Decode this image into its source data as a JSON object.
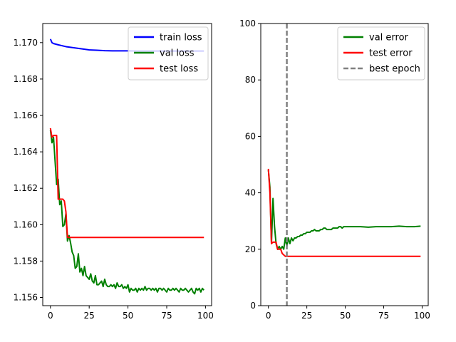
{
  "chart_data": [
    {
      "type": "line",
      "xlim": [
        -4.95,
        103.95
      ],
      "ylim": [
        1.15555,
        1.17105
      ],
      "xticks": [
        0,
        25,
        50,
        75,
        100
      ],
      "yticks": [
        1.156,
        1.158,
        1.16,
        1.162,
        1.164,
        1.166,
        1.168,
        1.17
      ],
      "ytick_labels": [
        "1.156",
        "1.158",
        "1.160",
        "1.162",
        "1.164",
        "1.166",
        "1.168",
        "1.170"
      ],
      "grid": false,
      "legend_position": "top-right",
      "series": [
        {
          "name": "train loss",
          "color": "#0000ff",
          "x": [
            0,
            1,
            2,
            5,
            10,
            15,
            20,
            25,
            30,
            35,
            40,
            45,
            50,
            55,
            60,
            65,
            70,
            75,
            80,
            85,
            90,
            95,
            99
          ],
          "y": [
            1.1702,
            1.17,
            1.16995,
            1.16988,
            1.16978,
            1.16972,
            1.16966,
            1.1696,
            1.16958,
            1.16956,
            1.16955,
            1.16955,
            1.16955,
            1.16954,
            1.16954,
            1.16954,
            1.16954,
            1.16954,
            1.16954,
            1.16954,
            1.16954,
            1.16954,
            1.16954
          ]
        },
        {
          "name": "val loss",
          "color": "#008000",
          "x": [
            0,
            1,
            2,
            3,
            4,
            5,
            6,
            7,
            8,
            9,
            10,
            11,
            12,
            13,
            14,
            15,
            16,
            17,
            18,
            19,
            20,
            21,
            22,
            23,
            24,
            25,
            26,
            27,
            28,
            29,
            30,
            31,
            32,
            33,
            34,
            35,
            36,
            37,
            38,
            39,
            40,
            41,
            42,
            43,
            44,
            45,
            46,
            47,
            48,
            49,
            50,
            51,
            52,
            53,
            54,
            55,
            56,
            57,
            58,
            59,
            60,
            61,
            62,
            63,
            64,
            65,
            66,
            67,
            68,
            69,
            70,
            71,
            72,
            73,
            74,
            75,
            76,
            77,
            78,
            79,
            80,
            81,
            82,
            83,
            84,
            85,
            86,
            87,
            88,
            89,
            90,
            91,
            92,
            93,
            94,
            95,
            96,
            97,
            98,
            99
          ],
          "y": [
            1.1652,
            1.1645,
            1.1648,
            1.1635,
            1.1622,
            1.1625,
            1.1611,
            1.1613,
            1.1599,
            1.16,
            1.1606,
            1.1591,
            1.1594,
            1.159,
            1.1585,
            1.1583,
            1.1576,
            1.1577,
            1.1584,
            1.1574,
            1.1576,
            1.1572,
            1.1577,
            1.1572,
            1.1571,
            1.157,
            1.1573,
            1.1569,
            1.1568,
            1.1572,
            1.1567,
            1.1567,
            1.1568,
            1.1569,
            1.1566,
            1.157,
            1.1567,
            1.1566,
            1.1566,
            1.1567,
            1.1566,
            1.1567,
            1.1565,
            1.1568,
            1.1566,
            1.1566,
            1.1567,
            1.1565,
            1.1566,
            1.1565,
            1.1567,
            1.1563,
            1.1565,
            1.1564,
            1.1564,
            1.1565,
            1.1563,
            1.1565,
            1.1564,
            1.1565,
            1.1564,
            1.1566,
            1.1564,
            1.1565,
            1.1565,
            1.1564,
            1.1565,
            1.1564,
            1.1565,
            1.1563,
            1.1565,
            1.1565,
            1.1564,
            1.1565,
            1.1564,
            1.1563,
            1.1565,
            1.1564,
            1.1564,
            1.1565,
            1.1564,
            1.1565,
            1.1564,
            1.1563,
            1.1565,
            1.1564,
            1.1564,
            1.1565,
            1.1564,
            1.1563,
            1.1564,
            1.1565,
            1.1563,
            1.1562,
            1.1565,
            1.1564,
            1.1565,
            1.1563,
            1.1565,
            1.1564
          ]
        },
        {
          "name": "test loss",
          "color": "#ff0000",
          "x": [
            0,
            1,
            2,
            3,
            4,
            5,
            6,
            7,
            8,
            9,
            10,
            11,
            12,
            13,
            99
          ],
          "y": [
            1.1653,
            1.1648,
            1.1649,
            1.1649,
            1.1649,
            1.1614,
            1.1614,
            1.1614,
            1.1614,
            1.1613,
            1.1607,
            1.1593,
            1.1593,
            1.1593,
            1.1593
          ]
        }
      ]
    },
    {
      "type": "line",
      "xlim": [
        -4.95,
        103.95
      ],
      "ylim": [
        0,
        100
      ],
      "xticks": [
        0,
        25,
        50,
        75,
        100
      ],
      "yticks": [
        0,
        20,
        40,
        60,
        80,
        100
      ],
      "ytick_labels": [
        "0",
        "20",
        "40",
        "60",
        "80",
        "100"
      ],
      "grid": false,
      "legend_position": "top-right",
      "series": [
        {
          "name": "val error",
          "color": "#008000",
          "x": [
            0,
            1,
            2,
            3,
            4,
            5,
            6,
            7,
            8,
            9,
            10,
            11,
            12,
            13,
            14,
            15,
            16,
            17,
            18,
            19,
            20,
            21,
            22,
            23,
            24,
            25,
            26,
            27,
            28,
            29,
            30,
            31,
            32,
            33,
            34,
            35,
            36,
            37,
            38,
            39,
            40,
            41,
            42,
            43,
            44,
            45,
            46,
            47,
            48,
            49,
            50,
            55,
            60,
            65,
            70,
            75,
            80,
            85,
            90,
            95,
            99
          ],
          "y": [
            48,
            42,
            22,
            38,
            28,
            22,
            20,
            21,
            20,
            21,
            20,
            24,
            21,
            24,
            22,
            24,
            23,
            24,
            24,
            24.5,
            24.5,
            25,
            25,
            25.5,
            25.5,
            26,
            26,
            26,
            26.5,
            26.5,
            27,
            26.5,
            26.5,
            26.5,
            27,
            27,
            27.5,
            27.5,
            27,
            27,
            27,
            27,
            27.5,
            27.5,
            27.5,
            27.5,
            28,
            28,
            27.5,
            28,
            28,
            28,
            28,
            27.8,
            28,
            28,
            28,
            28.2,
            28,
            28,
            28.2
          ]
        },
        {
          "name": "test error",
          "color": "#ff0000",
          "x": [
            0,
            1,
            2,
            3,
            4,
            5,
            6,
            7,
            8,
            9,
            10,
            11,
            12,
            13,
            99
          ],
          "y": [
            48.5,
            40,
            22,
            22.5,
            22.5,
            22.5,
            20,
            20,
            20,
            18.5,
            18,
            17.5,
            17.5,
            17.5,
            17.5
          ]
        }
      ],
      "reference_lines": [
        {
          "name": "best epoch",
          "orientation": "vertical",
          "x": 12,
          "color": "#808080",
          "style": "dashed"
        }
      ]
    }
  ]
}
